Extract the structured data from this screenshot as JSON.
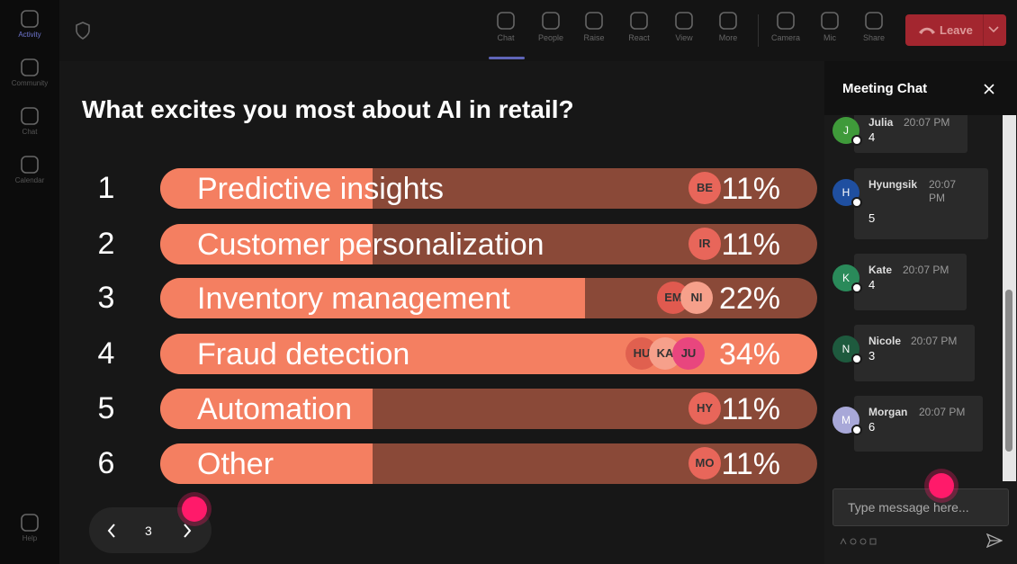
{
  "rail": {
    "items": [
      "Activity",
      "Community",
      "Chat",
      "Calendar"
    ],
    "help": "Help"
  },
  "toolbar": {
    "buttons": [
      "Chat",
      "People",
      "Raise",
      "React",
      "View",
      "More",
      "Camera",
      "Mic",
      "Share"
    ],
    "leave": "Leave"
  },
  "poll": {
    "question": "What excites you most about AI in retail?",
    "options": [
      {
        "rank": 1,
        "label": "Predictive insights",
        "value": 11,
        "value_label": "11%",
        "voters": [
          {
            "initials": "BE",
            "color": "#e8665a"
          }
        ]
      },
      {
        "rank": 2,
        "label": "Customer personalization",
        "value": 11,
        "value_label": "11%",
        "voters": [
          {
            "initials": "IR",
            "color": "#e8665a"
          }
        ]
      },
      {
        "rank": 3,
        "label": "Inventory management",
        "value": 22,
        "value_label": "22%",
        "voters": [
          {
            "initials": "EM",
            "color": "#e05a4f"
          },
          {
            "initials": "NI",
            "color": "#f6a08b"
          }
        ]
      },
      {
        "rank": 4,
        "label": "Fraud detection",
        "value": 34,
        "value_label": "34%",
        "voters": [
          {
            "initials": "HU",
            "color": "#e0604f"
          },
          {
            "initials": "KA",
            "color": "#f6a08b"
          },
          {
            "initials": "JU",
            "color": "#e8467e"
          }
        ]
      },
      {
        "rank": 5,
        "label": "Automation",
        "value": 11,
        "value_label": "11%",
        "voters": [
          {
            "initials": "HY",
            "color": "#e8665a"
          }
        ]
      },
      {
        "rank": 6,
        "label": "Other",
        "value": 11,
        "value_label": "11%",
        "voters": [
          {
            "initials": "MO",
            "color": "#e8665a"
          }
        ]
      }
    ]
  },
  "pager": {
    "page": 3
  },
  "chat": {
    "title": "Meeting Chat",
    "placeholder": "Type message here...",
    "messages": [
      {
        "initial": "J",
        "name": "Julia",
        "time": "20:07 PM",
        "text": "4",
        "color": "#3f9a3a"
      },
      {
        "initial": "H",
        "name": "Hyungsik",
        "time": "20:07 PM",
        "text": "5",
        "color": "#1f4fa0"
      },
      {
        "initial": "K",
        "name": "Kate",
        "time": "20:07 PM",
        "text": "4",
        "color": "#2a8a5a"
      },
      {
        "initial": "N",
        "name": "Nicole",
        "time": "20:07 PM",
        "text": "3",
        "color": "#1e5a3e"
      },
      {
        "initial": "M",
        "name": "Morgan",
        "time": "20:07 PM",
        "text": "6",
        "color": "#a8a8d8"
      }
    ]
  }
}
